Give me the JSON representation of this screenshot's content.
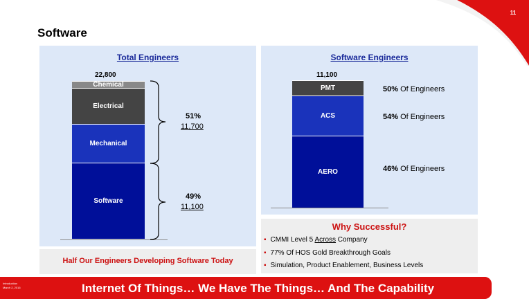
{
  "slide": {
    "page_number": "11",
    "title": "Software",
    "tagline": "Internet Of Things… We Have The Things… And The Capability",
    "footer_meta_line1": "Introduction",
    "footer_meta_line2": "March 2, 2016",
    "accent_color": "#dd1111"
  },
  "total_engineers": {
    "heading": "Total Engineers",
    "total": "22,800",
    "segments": [
      {
        "label": "Chemical",
        "color": "#888888"
      },
      {
        "label": "Electrical",
        "color": "#444444"
      },
      {
        "label": "Mechanical",
        "color": "#1a33bb"
      },
      {
        "label": "Software",
        "color": "#000f99"
      }
    ],
    "groups": [
      {
        "percent": "51%",
        "count": "11,700"
      },
      {
        "percent": "49%",
        "count": "11,100"
      }
    ],
    "footer": "Half Our Engineers Developing Software Today"
  },
  "software_engineers": {
    "heading": "Software Engineers",
    "total": "11,100",
    "segments": [
      {
        "label": "PMT",
        "color": "#444444",
        "percent": "50%",
        "suffix": "Of Engineers"
      },
      {
        "label": "ACS",
        "color": "#1a33bb",
        "percent": "54%",
        "suffix": "Of Engineers"
      },
      {
        "label": "AERO",
        "color": "#000f99",
        "percent": "46%",
        "suffix": "Of Engineers"
      }
    ]
  },
  "why_successful": {
    "title": "Why Successful?",
    "items": [
      {
        "before": "CMMI Level 5 ",
        "underlined": "Across",
        "after": " Company"
      },
      {
        "before": "77% Of HOS Gold Breakthrough Goals",
        "underlined": "",
        "after": ""
      },
      {
        "before": "Simulation, Product Enablement, Business Levels",
        "underlined": "",
        "after": ""
      }
    ]
  }
}
